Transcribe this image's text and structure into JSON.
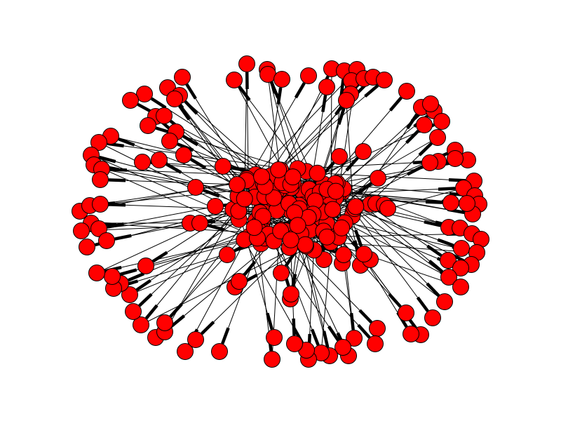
{
  "graph": {
    "type": "network",
    "directed": true,
    "node_color": "#ff0000",
    "edge_color": "#000000",
    "node_outline_color": "#000000",
    "background_color": "#ffffff"
  }
}
